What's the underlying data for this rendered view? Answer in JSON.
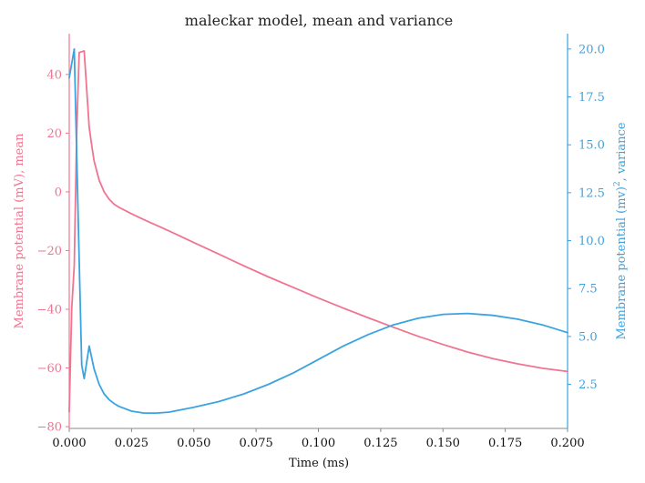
{
  "chart_data": {
    "type": "line",
    "title": "maleckar model, mean and variance",
    "xlabel": "Time (ms)",
    "xlim": [
      0.0,
      0.2
    ],
    "x_ticks": [
      "0.000",
      "0.025",
      "0.050",
      "0.075",
      "0.100",
      "0.125",
      "0.150",
      "0.175",
      "0.200"
    ],
    "y_left": {
      "label": "Membrane potential (mV), mean",
      "lim": [
        -80.6,
        53.9
      ],
      "ticks": [
        "−80",
        "−60",
        "−40",
        "−20",
        "0",
        "20",
        "40"
      ],
      "color": "#f07490"
    },
    "y_right": {
      "label_base": "Membrane potential (mv)",
      "label_sup": "2",
      "label_suffix": ", variance",
      "lim": [
        0.2,
        20.8
      ],
      "ticks": [
        "2.5",
        "5.0",
        "7.5",
        "10.0",
        "12.5",
        "15.0",
        "17.5",
        "20.0"
      ],
      "color": "#3aa3e0"
    },
    "series": [
      {
        "axis": "left",
        "color": "#f07490",
        "points": [
          [
            0,
            -75
          ],
          [
            0.001,
            -40
          ],
          [
            0.002,
            -25
          ],
          [
            0.003,
            20
          ],
          [
            0.004,
            47.5
          ],
          [
            0.006,
            48
          ],
          [
            0.008,
            22
          ],
          [
            0.009,
            16
          ],
          [
            0.01,
            10.5
          ],
          [
            0.012,
            4
          ],
          [
            0.014,
            0
          ],
          [
            0.016,
            -2.5
          ],
          [
            0.018,
            -4.2
          ],
          [
            0.02,
            -5.3
          ],
          [
            0.025,
            -7.5
          ],
          [
            0.03,
            -9.5
          ],
          [
            0.04,
            -13.3
          ],
          [
            0.05,
            -17.3
          ],
          [
            0.06,
            -21.2
          ],
          [
            0.07,
            -25.2
          ],
          [
            0.08,
            -29
          ],
          [
            0.09,
            -32.6
          ],
          [
            0.1,
            -36.2
          ],
          [
            0.11,
            -39.6
          ],
          [
            0.12,
            -42.9
          ],
          [
            0.13,
            -46.1
          ],
          [
            0.14,
            -49.2
          ],
          [
            0.15,
            -52.0
          ],
          [
            0.16,
            -54.6
          ],
          [
            0.17,
            -56.8
          ],
          [
            0.18,
            -58.6
          ],
          [
            0.19,
            -60.1
          ],
          [
            0.2,
            -61.2
          ]
        ]
      },
      {
        "axis": "right",
        "color": "#3aa3e0",
        "points": [
          [
            0,
            18.5
          ],
          [
            0.002,
            20.0
          ],
          [
            0.003,
            14.5
          ],
          [
            0.004,
            9
          ],
          [
            0.005,
            3.5
          ],
          [
            0.006,
            2.8
          ],
          [
            0.008,
            4.5
          ],
          [
            0.01,
            3.3
          ],
          [
            0.012,
            2.5
          ],
          [
            0.014,
            2.0
          ],
          [
            0.016,
            1.7
          ],
          [
            0.018,
            1.5
          ],
          [
            0.02,
            1.35
          ],
          [
            0.025,
            1.1
          ],
          [
            0.03,
            1.0
          ],
          [
            0.035,
            1.0
          ],
          [
            0.04,
            1.05
          ],
          [
            0.05,
            1.3
          ],
          [
            0.06,
            1.6
          ],
          [
            0.07,
            2.0
          ],
          [
            0.08,
            2.5
          ],
          [
            0.09,
            3.1
          ],
          [
            0.1,
            3.8
          ],
          [
            0.11,
            4.5
          ],
          [
            0.12,
            5.1
          ],
          [
            0.13,
            5.6
          ],
          [
            0.14,
            5.95
          ],
          [
            0.15,
            6.15
          ],
          [
            0.16,
            6.2
          ],
          [
            0.17,
            6.1
          ],
          [
            0.18,
            5.9
          ],
          [
            0.19,
            5.6
          ],
          [
            0.2,
            5.2
          ]
        ]
      }
    ]
  }
}
